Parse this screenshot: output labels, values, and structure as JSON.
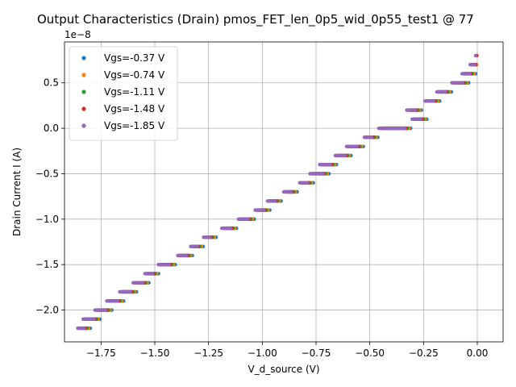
{
  "chart_data": {
    "type": "scatter",
    "title": "Output Characteristics (Drain) pmos_FET_len_0p5_wid_0p55_test1 @ 77",
    "xlabel": "V_d_source (V)",
    "ylabel": "Drain Current I (A)",
    "y_offset_label": "1e−8",
    "xlim": [
      -1.92,
      0.12
    ],
    "ylim": [
      -2.35e-08,
      9.5e-09
    ],
    "x_ticks": [
      -1.75,
      -1.5,
      -1.25,
      -1.0,
      -0.75,
      -0.5,
      -0.25,
      0.0
    ],
    "x_tick_labels": [
      "−1.75",
      "−1.50",
      "−1.25",
      "−1.00",
      "−0.75",
      "−0.50",
      "−0.25",
      "0.00"
    ],
    "y_ticks": [
      -2e-08,
      -1.5e-08,
      -1e-08,
      -5e-09,
      0.0,
      5e-09
    ],
    "y_tick_labels": [
      "−2.0",
      "−1.5",
      "−1.0",
      "−0.5",
      "0.0",
      "0.5"
    ],
    "grid": true,
    "legend_position": "top-left",
    "series": [
      {
        "name": "Vgs=-0.37 V",
        "color": "#1f77b4",
        "shift": 0.02
      },
      {
        "name": "Vgs=-0.74 V",
        "color": "#ff7f0e",
        "shift": 0.012
      },
      {
        "name": "Vgs=-1.11 V",
        "color": "#2ca02c",
        "shift": 0.005
      },
      {
        "name": "Vgs=-1.48 V",
        "color": "#d62728",
        "shift": -0.002
      },
      {
        "name": "Vgs=-1.85 V",
        "color": "#9467bd",
        "shift": -0.008
      }
    ],
    "current_levels": [
      {
        "i": -2.2e-08,
        "v": -1.835,
        "w": 0.03
      },
      {
        "i": -2.1e-08,
        "v": -1.8,
        "w": 0.05
      },
      {
        "i": -2e-08,
        "v": -1.745,
        "w": 0.05
      },
      {
        "i": -1.9e-08,
        "v": -1.69,
        "w": 0.05
      },
      {
        "i": -1.8e-08,
        "v": -1.63,
        "w": 0.05
      },
      {
        "i": -1.7e-08,
        "v": -1.57,
        "w": 0.045
      },
      {
        "i": -1.6e-08,
        "v": -1.52,
        "w": 0.035
      },
      {
        "i": -1.5e-08,
        "v": -1.45,
        "w": 0.05
      },
      {
        "i": -1.4e-08,
        "v": -1.365,
        "w": 0.04
      },
      {
        "i": -1.3e-08,
        "v": -1.31,
        "w": 0.03
      },
      {
        "i": -1.2e-08,
        "v": -1.25,
        "w": 0.03
      },
      {
        "i": -1.1e-08,
        "v": -1.16,
        "w": 0.04
      },
      {
        "i": -1e-08,
        "v": -1.08,
        "w": 0.045
      },
      {
        "i": -9e-09,
        "v": -1.005,
        "w": 0.04
      },
      {
        "i": -8e-09,
        "v": -0.95,
        "w": 0.035
      },
      {
        "i": -7e-09,
        "v": -0.875,
        "w": 0.035
      },
      {
        "i": -6e-09,
        "v": -0.8,
        "w": 0.035
      },
      {
        "i": -5e-09,
        "v": -0.74,
        "w": 0.06
      },
      {
        "i": -4e-09,
        "v": -0.7,
        "w": 0.05
      },
      {
        "i": -3e-09,
        "v": -0.63,
        "w": 0.045
      },
      {
        "i": -2e-09,
        "v": -0.575,
        "w": 0.05
      },
      {
        "i": -1e-09,
        "v": -0.5,
        "w": 0.035
      },
      {
        "i": 0.0,
        "v": -0.39,
        "w": 0.12
      },
      {
        "i": 1e-09,
        "v": -0.275,
        "w": 0.04
      },
      {
        "i": 2e-09,
        "v": -0.3,
        "w": 0.04
      },
      {
        "i": 3e-09,
        "v": -0.215,
        "w": 0.04
      },
      {
        "i": 4e-09,
        "v": -0.16,
        "w": 0.04
      },
      {
        "i": 5e-09,
        "v": -0.085,
        "w": 0.05
      },
      {
        "i": 6e-09,
        "v": -0.045,
        "w": 0.035
      },
      {
        "i": 7e-09,
        "v": -0.015,
        "w": 0.02
      },
      {
        "i": 8e-09,
        "v": 0.0,
        "w": 0.0
      }
    ]
  }
}
